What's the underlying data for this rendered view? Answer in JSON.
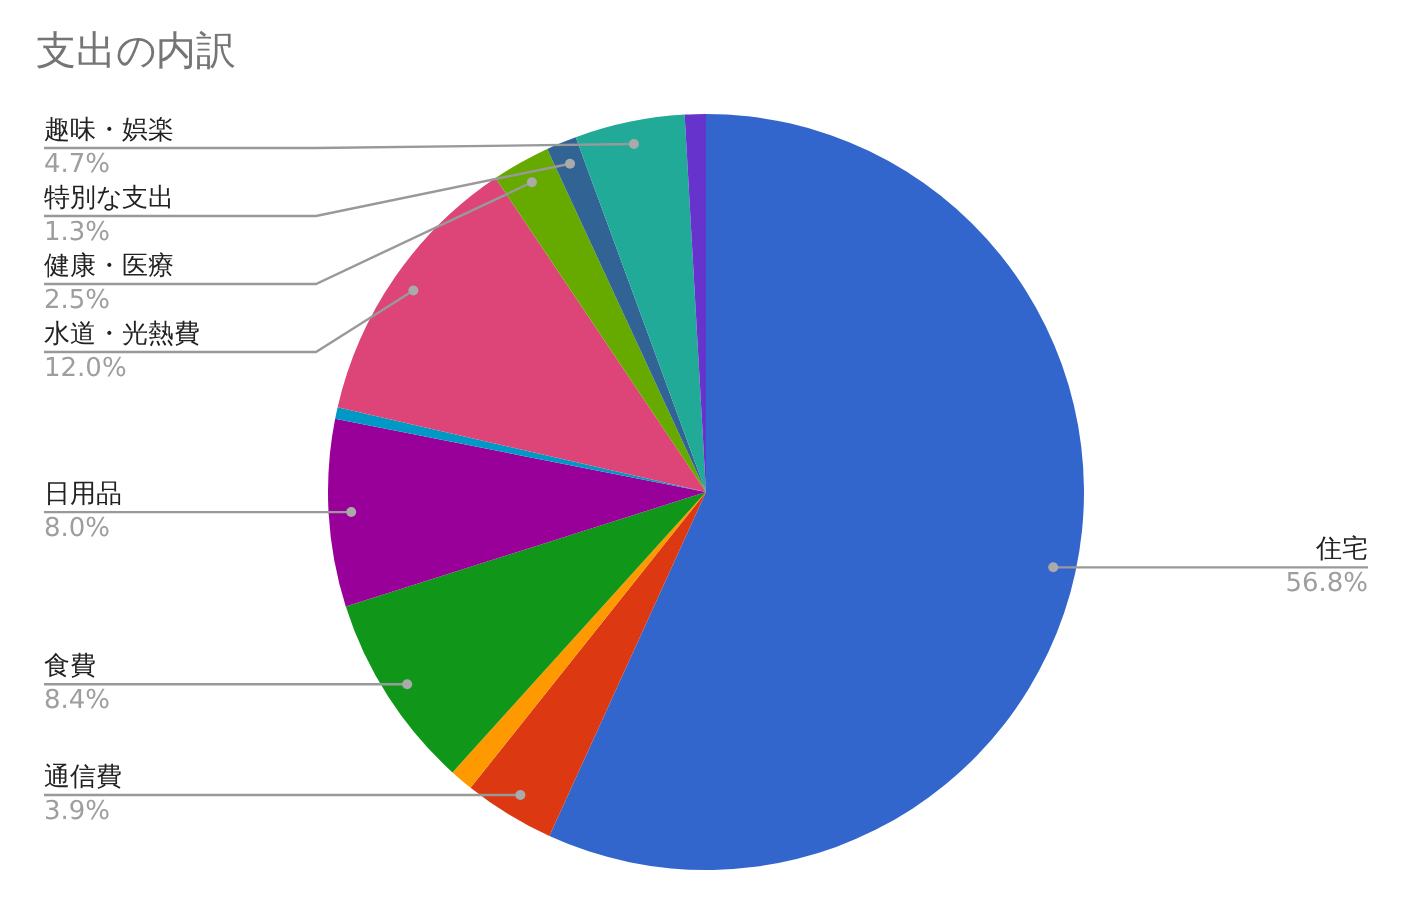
{
  "chart_data": {
    "type": "pie",
    "title": "支出の内訳",
    "categories": [
      "住宅",
      "通信費",
      null,
      "食費",
      "日用品",
      null,
      "水道・光熱費",
      "健康・医療",
      "特別な支出",
      "趣味・娯楽",
      null
    ],
    "values": [
      56.8,
      3.9,
      1.0,
      8.4,
      8.0,
      0.5,
      12.0,
      2.5,
      1.3,
      4.7,
      0.9
    ],
    "colors": [
      "#3366cc",
      "#dc3912",
      "#ff9900",
      "#109618",
      "#990099",
      "#0099c6",
      "#dd4477",
      "#66aa00",
      "#316395",
      "#22aa99",
      "#6633cc"
    ],
    "value_labels": [
      "56.8%",
      "3.9%",
      null,
      "8.4%",
      "8.0%",
      null,
      "12.0%",
      "2.5%",
      "1.3%",
      "4.7%",
      null
    ],
    "legend": false
  }
}
